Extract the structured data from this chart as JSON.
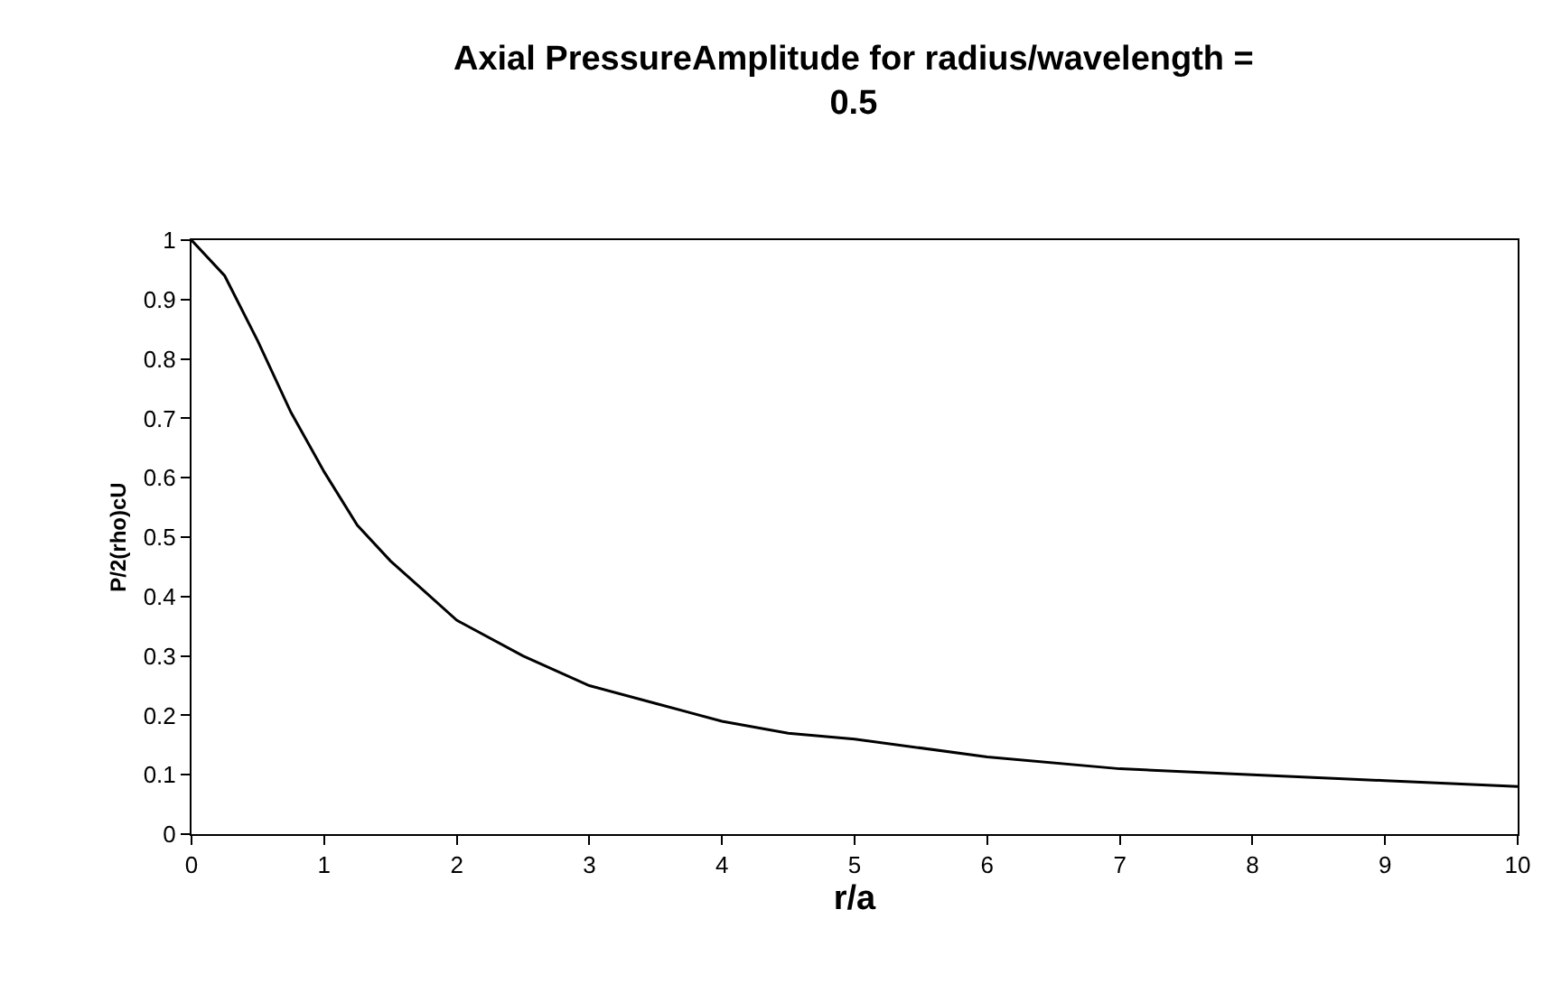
{
  "chart_data": {
    "type": "line",
    "title": "Axial PressureAmplitude for radius/wavelength = 0.5",
    "xlabel": "r/a",
    "ylabel": "P/2(rho)cU",
    "x": [
      0,
      0.25,
      0.5,
      0.75,
      1,
      1.25,
      1.5,
      1.75,
      2,
      2.5,
      3,
      3.5,
      4,
      4.5,
      5,
      6,
      7,
      8,
      9,
      10
    ],
    "series": [
      {
        "color": "#000000",
        "values": [
          1,
          0.94,
          0.83,
          0.71,
          0.61,
          0.52,
          0.46,
          0.41,
          0.36,
          0.3,
          0.25,
          0.22,
          0.19,
          0.17,
          0.16,
          0.13,
          0.11,
          0.1,
          0.09,
          0.08
        ]
      }
    ],
    "xlim": [
      0,
      10
    ],
    "xticks": [
      0,
      1,
      2,
      3,
      4,
      5,
      6,
      7,
      8,
      9,
      10
    ],
    "ylim": [
      0,
      1
    ],
    "yticks": [
      0,
      0.1,
      0.2,
      0.3,
      0.4,
      0.5,
      0.6,
      0.7,
      0.8,
      0.9,
      1
    ],
    "marker": "none",
    "line_style": "solid"
  }
}
